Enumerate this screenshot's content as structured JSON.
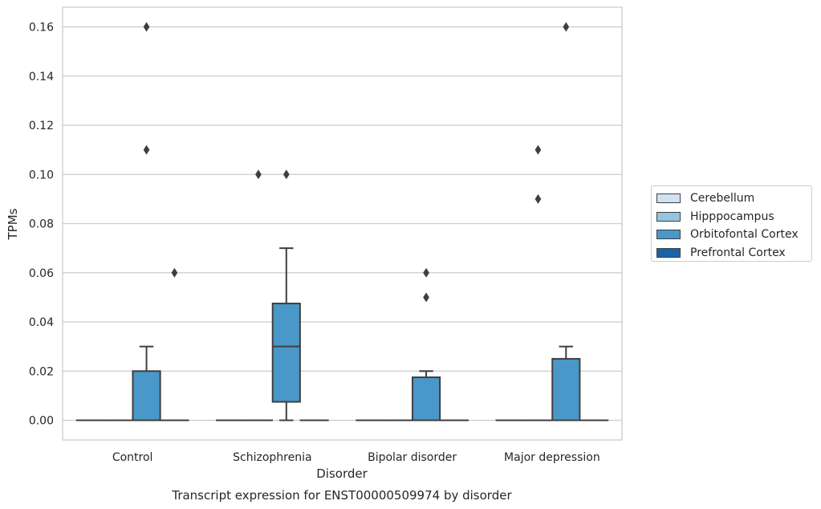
{
  "chart_data": {
    "type": "box",
    "title": "Transcript expression for ENST00000509974 by disorder",
    "xlabel": "Disorder",
    "ylabel": "TPMs",
    "ylim": [
      -0.008,
      0.168
    ],
    "yticks": [
      "0.00",
      "0.02",
      "0.04",
      "0.06",
      "0.08",
      "0.10",
      "0.12",
      "0.14",
      "0.16"
    ],
    "ytick_values": [
      0,
      0.02,
      0.04,
      0.06,
      0.08,
      0.1,
      0.12,
      0.14,
      0.16
    ],
    "grid": true,
    "legend_position": "center-right",
    "categories": [
      "Control",
      "Schizophrenia",
      "Bipolar disorder",
      "Major depression"
    ],
    "series": [
      {
        "name": "Cerebellum",
        "color": "#d0e1f2",
        "boxes": [
          {
            "q1": 0,
            "median": 0,
            "q3": 0,
            "whisker_low": 0,
            "whisker_high": 0,
            "outliers": []
          },
          {
            "q1": 0,
            "median": 0,
            "q3": 0,
            "whisker_low": 0,
            "whisker_high": 0,
            "outliers": []
          },
          {
            "q1": 0,
            "median": 0,
            "q3": 0,
            "whisker_low": 0,
            "whisker_high": 0,
            "outliers": []
          },
          {
            "q1": 0,
            "median": 0,
            "q3": 0,
            "whisker_low": 0,
            "whisker_high": 0,
            "outliers": []
          }
        ]
      },
      {
        "name": "Hipppocampus",
        "color": "#94c4df",
        "boxes": [
          {
            "q1": 0,
            "median": 0,
            "q3": 0,
            "whisker_low": 0,
            "whisker_high": 0,
            "outliers": []
          },
          {
            "q1": 0,
            "median": 0,
            "q3": 0,
            "whisker_low": 0,
            "whisker_high": 0,
            "outliers": [
              0.1
            ]
          },
          {
            "q1": 0,
            "median": 0,
            "q3": 0,
            "whisker_low": 0,
            "whisker_high": 0,
            "outliers": []
          },
          {
            "q1": 0,
            "median": 0,
            "q3": 0,
            "whisker_low": 0,
            "whisker_high": 0,
            "outliers": [
              0.11,
              0.09
            ]
          }
        ]
      },
      {
        "name": "Orbitofontal Cortex",
        "color": "#4a98c9",
        "boxes": [
          {
            "q1": 0,
            "median": 0,
            "q3": 0.02,
            "whisker_low": 0,
            "whisker_high": 0.03,
            "outliers": [
              0.16,
              0.11
            ]
          },
          {
            "q1": 0.0075,
            "median": 0.03,
            "q3": 0.0475,
            "whisker_low": 0,
            "whisker_high": 0.07,
            "outliers": [
              0.1
            ]
          },
          {
            "q1": 0,
            "median": 0,
            "q3": 0.0175,
            "whisker_low": 0,
            "whisker_high": 0.02,
            "outliers": [
              0.06,
              0.05
            ]
          },
          {
            "q1": 0,
            "median": 0,
            "q3": 0.025,
            "whisker_low": 0,
            "whisker_high": 0.03,
            "outliers": [
              0.16
            ]
          }
        ]
      },
      {
        "name": "Prefrontal Cortex",
        "color": "#1764ab",
        "boxes": [
          {
            "q1": 0,
            "median": 0,
            "q3": 0,
            "whisker_low": 0,
            "whisker_high": 0,
            "outliers": [
              0.06
            ]
          },
          {
            "q1": 0,
            "median": 0,
            "q3": 0,
            "whisker_low": 0,
            "whisker_high": 0,
            "outliers": []
          },
          {
            "q1": 0,
            "median": 0,
            "q3": 0,
            "whisker_low": 0,
            "whisker_high": 0,
            "outliers": []
          },
          {
            "q1": 0,
            "median": 0,
            "q3": 0,
            "whisker_low": 0,
            "whisker_high": 0,
            "outliers": []
          }
        ]
      }
    ]
  },
  "style": {
    "grid_color": "#cccccc",
    "frame_color": "#cccccc",
    "box_edge_color": "#3f3f3f"
  }
}
